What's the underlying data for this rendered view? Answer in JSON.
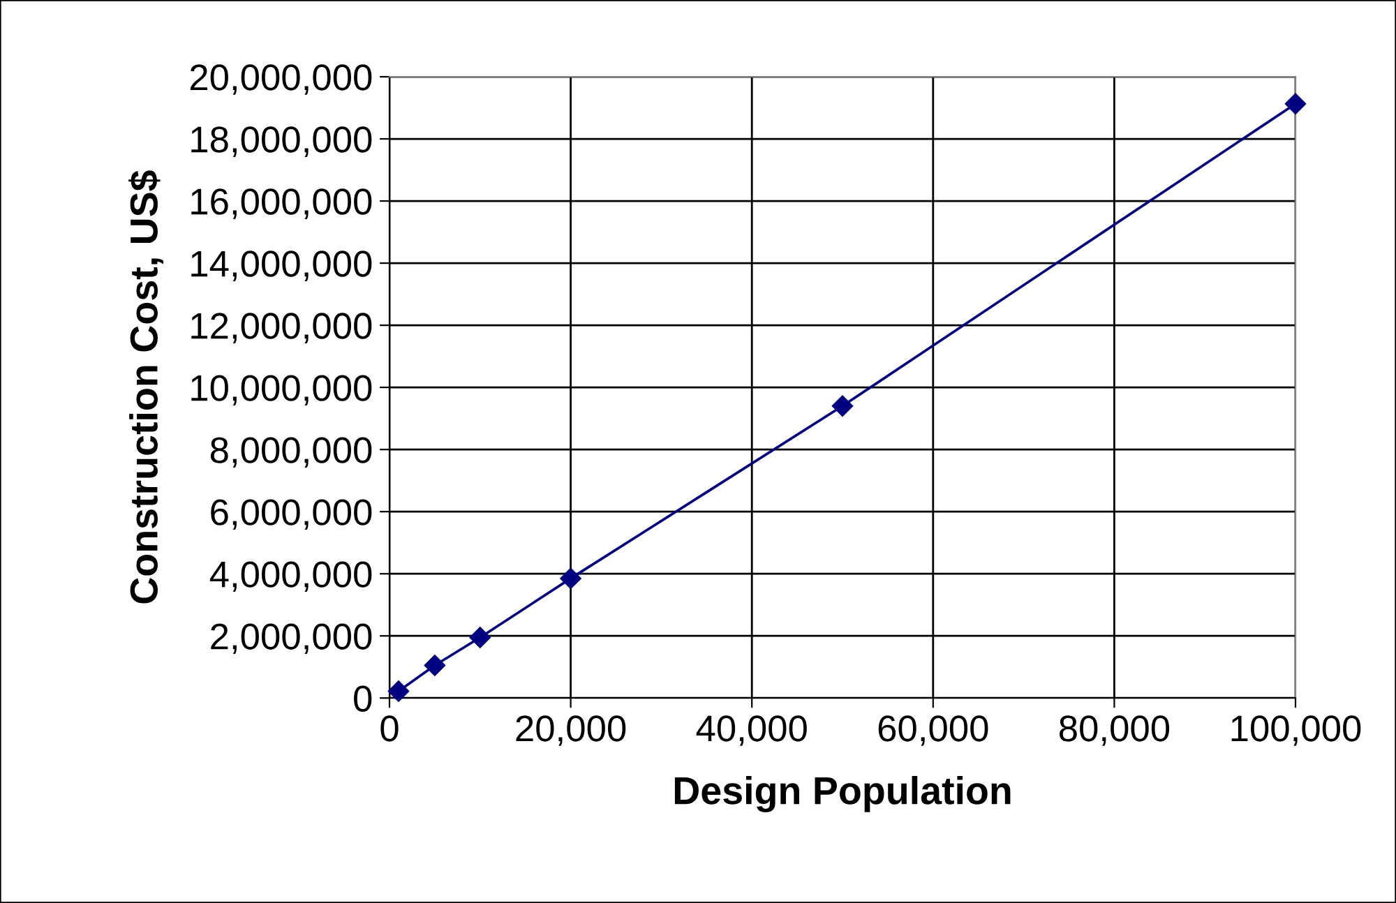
{
  "chart_data": {
    "type": "line",
    "xlabel": "Design Population",
    "ylabel": "Construction Cost, US$",
    "x": [
      1000,
      5000,
      10000,
      20000,
      50000,
      100000
    ],
    "series": [
      {
        "color": "#000080",
        "values": [
          220000,
          1050000,
          1950000,
          3850000,
          9400000,
          19130000
        ]
      }
    ],
    "xlim": [
      0,
      100000
    ],
    "xticks": [
      {
        "value": 0,
        "label": "0"
      },
      {
        "value": 20000,
        "label": "20,000"
      },
      {
        "value": 40000,
        "label": "40,000"
      },
      {
        "value": 60000,
        "label": "60,000"
      },
      {
        "value": 80000,
        "label": "80,000"
      },
      {
        "value": 100000,
        "label": "100,000"
      }
    ],
    "ylim": [
      0,
      20000000
    ],
    "yticks": [
      {
        "value": 0,
        "label": "0"
      },
      {
        "value": 2000000,
        "label": "2,000,000"
      },
      {
        "value": 4000000,
        "label": "4,000,000"
      },
      {
        "value": 6000000,
        "label": "6,000,000"
      },
      {
        "value": 8000000,
        "label": "8,000,000"
      },
      {
        "value": 10000000,
        "label": "10,000,000"
      },
      {
        "value": 12000000,
        "label": "12,000,000"
      },
      {
        "value": 14000000,
        "label": "14,000,000"
      },
      {
        "value": 16000000,
        "label": "16,000,000"
      },
      {
        "value": 18000000,
        "label": "18,000,000"
      },
      {
        "value": 20000000,
        "label": "20,000,000"
      }
    ],
    "grid": true,
    "marker": "diamond",
    "line_style": "solid"
  }
}
